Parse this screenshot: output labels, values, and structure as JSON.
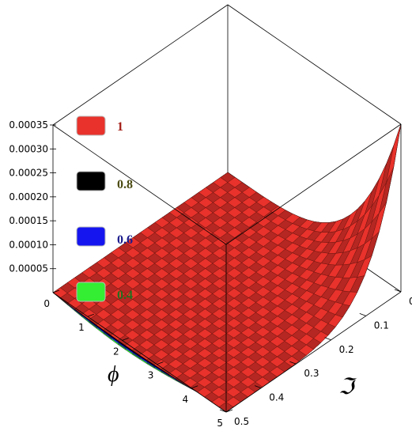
{
  "chart_data": {
    "type": "surface",
    "title": "",
    "x_axis": {
      "label": "ϕ",
      "range": [
        0,
        5
      ],
      "ticks": [
        "0",
        "1",
        "2",
        "3",
        "4",
        "5"
      ]
    },
    "y_axis": {
      "label": "ℑ",
      "range": [
        0,
        0.5
      ],
      "ticks": [
        "0",
        "0.1",
        "0.2",
        "0.3",
        "0.4",
        "0.5"
      ]
    },
    "z_axis": {
      "label": "",
      "range": [
        0,
        0.00035
      ],
      "ticks": [
        "0.00005",
        "0.00010",
        "0.00015",
        "0.00020",
        "0.00025",
        "0.00030",
        "0.00035"
      ]
    },
    "legend": {
      "position": "left",
      "items": [
        {
          "label": "1",
          "color": "#e8322b",
          "text_color": "#a31d17"
        },
        {
          "label": "0.8",
          "color": "#000000",
          "text_color": "#4a4a12"
        },
        {
          "label": "0.6",
          "color": "#1515f0",
          "text_color": "#1a1a8c"
        },
        {
          "label": "0.4",
          "color": "#33ee33",
          "text_color": "#207020"
        }
      ]
    },
    "series": [
      {
        "name": "1",
        "z_max": 0.00035,
        "dip_depth": 6e-06
      },
      {
        "name": "0.8",
        "z_max": 0.00035,
        "dip_depth": 9e-06
      },
      {
        "name": "0.6",
        "z_max": 0.00035,
        "dip_depth": 1.2e-05
      },
      {
        "name": "0.4",
        "z_max": 0.00035,
        "dip_depth": 1.5e-05
      }
    ],
    "grid": false,
    "box": true
  }
}
